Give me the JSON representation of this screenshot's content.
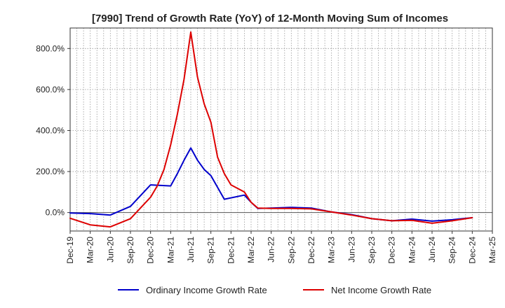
{
  "chart_data": {
    "type": "line",
    "title": "[7990]  Trend of Growth Rate (YoY) of 12-Month Moving Sum of Incomes",
    "xlabel": "",
    "ylabel": "",
    "ylim": [
      -90,
      900
    ],
    "y_ticks": [
      0,
      200,
      400,
      600,
      800
    ],
    "y_tick_labels": [
      "0.0%",
      "200.0%",
      "400.0%",
      "600.0%",
      "800.0%"
    ],
    "x_tick_labels": [
      "Dec-19",
      "Mar-20",
      "Jun-20",
      "Sep-20",
      "Dec-20",
      "Mar-21",
      "Jun-21",
      "Sep-21",
      "Dec-21",
      "Mar-22",
      "Jun-22",
      "Sep-22",
      "Dec-22",
      "Mar-23",
      "Jun-23",
      "Sep-23",
      "Dec-23",
      "Mar-24",
      "Jun-24",
      "Sep-24",
      "Dec-24",
      "Mar-25"
    ],
    "grid": true,
    "legend_position": "bottom",
    "series": [
      {
        "name": "Ordinary Income Growth Rate",
        "color": "#0000cc",
        "x": [
          0,
          3,
          6,
          9,
          12,
          15,
          16,
          17,
          18,
          19,
          20,
          21,
          23,
          26,
          27,
          28,
          30,
          33,
          36,
          39,
          42,
          45,
          48,
          51,
          54,
          57,
          60
        ],
        "values": [
          -2,
          -5,
          -12,
          30,
          135,
          130,
          190,
          255,
          315,
          255,
          210,
          180,
          65,
          85,
          50,
          20,
          22,
          25,
          22,
          3,
          -10,
          -30,
          -40,
          -32,
          -42,
          -35,
          -25
        ]
      },
      {
        "name": "Net Income Growth Rate",
        "color": "#dd0000",
        "x": [
          0,
          3,
          6,
          9,
          12,
          13,
          14,
          15,
          16,
          17,
          18,
          19,
          20,
          21,
          22,
          23,
          24,
          26,
          27,
          28,
          30,
          33,
          36,
          39,
          42,
          45,
          48,
          51,
          54,
          57,
          60
        ],
        "values": [
          -28,
          -60,
          -70,
          -30,
          75,
          130,
          210,
          330,
          480,
          650,
          880,
          660,
          530,
          440,
          270,
          190,
          135,
          100,
          50,
          22,
          20,
          20,
          18,
          3,
          -12,
          -30,
          -40,
          -38,
          -52,
          -40,
          -25
        ]
      }
    ]
  }
}
